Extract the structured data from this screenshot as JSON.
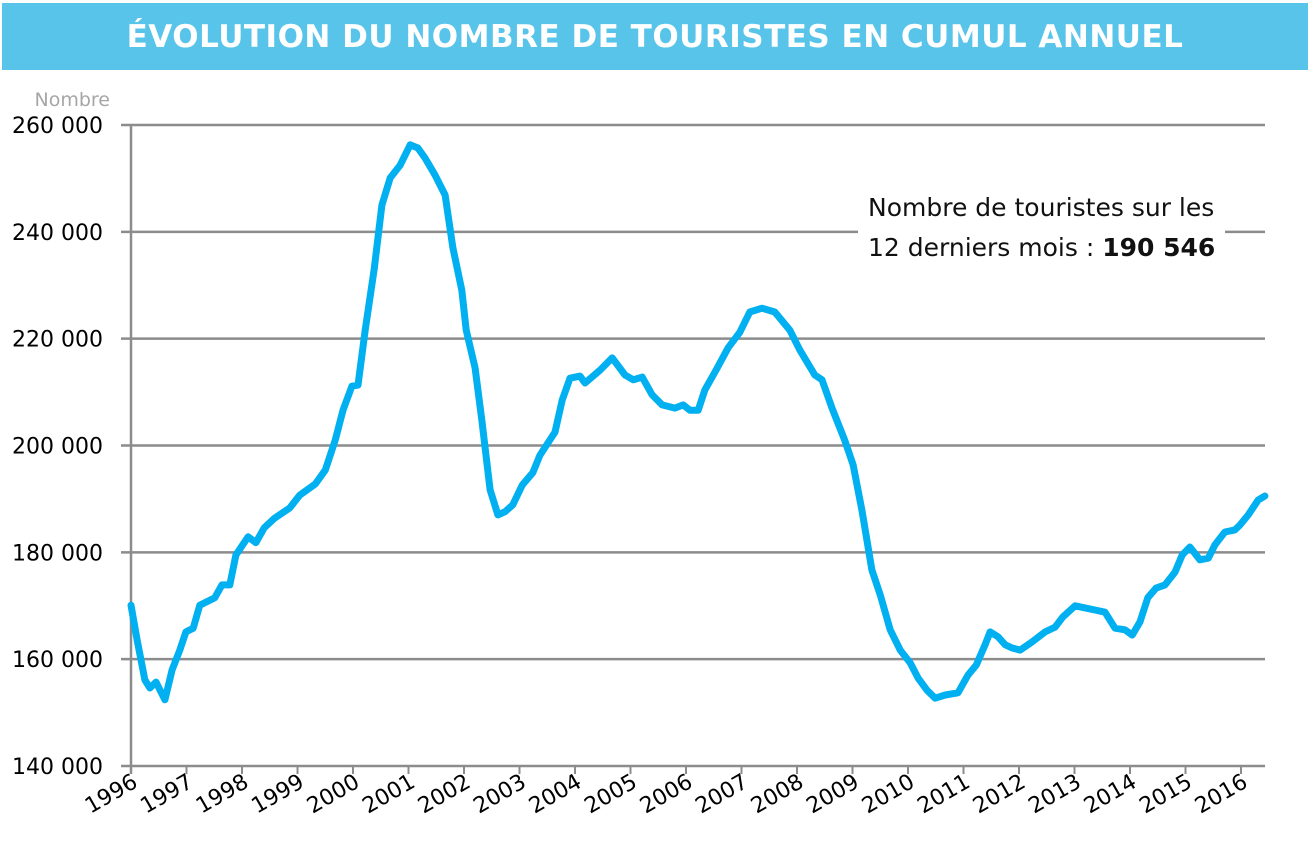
{
  "header": {
    "title": "ÉVOLUTION DU NOMBRE DE TOURISTES EN CUMUL ANNUEL",
    "color": "#59c4ea"
  },
  "annotation": {
    "line1": "Nombre de touristes sur les",
    "line2_prefix": "12 derniers mois : ",
    "value": "190 546"
  },
  "chart_data": {
    "type": "line",
    "title": "ÉVOLUTION DU NOMBRE DE TOURISTES EN CUMUL ANNUEL",
    "ylabel": "Nombre",
    "xlabel": "",
    "ylim": [
      140000,
      260000
    ],
    "xlim": [
      1996,
      2016.43
    ],
    "grid": true,
    "line_color": "#00b0f0",
    "y_ticks": [
      "140 000",
      "160 000",
      "180 000",
      "200 000",
      "220 000",
      "240 000",
      "260 000"
    ],
    "y_tick_values": [
      140000,
      160000,
      180000,
      200000,
      220000,
      240000,
      260000
    ],
    "x_ticks": [
      "1996",
      "1997",
      "1998",
      "1999",
      "2000",
      "2001",
      "2002",
      "2003",
      "2004",
      "2005",
      "2006",
      "2007",
      "2008",
      "2009",
      "2010",
      "2011",
      "2012",
      "2013",
      "2014",
      "2015",
      "2016"
    ],
    "series": [
      {
        "x": [
          1996.0,
          1996.11,
          1996.25,
          1996.34,
          1996.45,
          1996.61,
          1996.74,
          1996.88,
          1996.99,
          1997.12,
          1997.24,
          1997.51,
          1997.64,
          1997.78,
          1997.89,
          1998.11,
          1998.25,
          1998.4,
          1998.59,
          1998.86,
          1999.04,
          1999.32,
          1999.5,
          1999.68,
          1999.82,
          1999.98,
          2000.09,
          2000.22,
          2000.38,
          2000.52,
          2000.67,
          2000.85,
          2001.03,
          2001.17,
          2001.3,
          2001.48,
          2001.66,
          2001.8,
          2001.96,
          2002.04,
          2002.2,
          2002.32,
          2002.47,
          2002.61,
          2002.74,
          2002.88,
          2003.05,
          2003.24,
          2003.37,
          2003.64,
          2003.77,
          2003.91,
          2004.09,
          2004.18,
          2004.45,
          2004.67,
          2004.9,
          2005.05,
          2005.21,
          2005.39,
          2005.57,
          2005.8,
          2005.95,
          2006.07,
          2006.22,
          2006.34,
          2006.54,
          2006.76,
          2006.97,
          2007.15,
          2007.37,
          2007.6,
          2007.87,
          2008.05,
          2008.32,
          2008.45,
          2008.63,
          2008.86,
          2009.01,
          2009.17,
          2009.35,
          2009.5,
          2009.68,
          2009.86,
          2010.04,
          2010.18,
          2010.34,
          2010.49,
          2010.67,
          2010.9,
          2011.08,
          2011.23,
          2011.39,
          2011.48,
          2011.62,
          2011.75,
          2011.87,
          2012.02,
          2012.23,
          2012.47,
          2012.65,
          2012.79,
          2013.01,
          2013.19,
          2013.37,
          2013.55,
          2013.73,
          2013.91,
          2014.04,
          2014.18,
          2014.32,
          2014.47,
          2014.63,
          2014.81,
          2014.94,
          2015.08,
          2015.26,
          2015.41,
          2015.53,
          2015.71,
          2015.89,
          2015.98,
          2016.13,
          2016.31,
          2016.43
        ],
        "values": [
          170100,
          163600,
          156100,
          154600,
          155700,
          152400,
          158000,
          161700,
          165100,
          165800,
          170100,
          171500,
          173900,
          173900,
          179500,
          182900,
          181800,
          184600,
          186400,
          188300,
          190700,
          192800,
          195400,
          201000,
          206600,
          211100,
          211300,
          221600,
          232900,
          245000,
          250100,
          252500,
          256300,
          255700,
          253800,
          250600,
          246900,
          237000,
          229100,
          221600,
          214500,
          204800,
          191700,
          187000,
          187600,
          188900,
          192600,
          194900,
          198200,
          202500,
          208500,
          212600,
          213000,
          211700,
          214100,
          216400,
          213200,
          212300,
          212800,
          209500,
          207600,
          207000,
          207600,
          206600,
          206600,
          210400,
          214100,
          218300,
          221200,
          225000,
          225700,
          225000,
          221600,
          217900,
          213200,
          212300,
          207000,
          201000,
          196400,
          187900,
          176700,
          172000,
          165500,
          161700,
          159300,
          156500,
          154200,
          152700,
          153300,
          153700,
          157000,
          158900,
          162700,
          165100,
          164200,
          162700,
          162100,
          161700,
          163200,
          165100,
          166000,
          167900,
          170000,
          169600,
          169200,
          168800,
          165800,
          165500,
          164500,
          167000,
          171500,
          173300,
          173900,
          176300,
          179500,
          181000,
          178600,
          178900,
          181400,
          183800,
          184200,
          185100,
          187000,
          189800,
          190546
        ]
      }
    ]
  }
}
